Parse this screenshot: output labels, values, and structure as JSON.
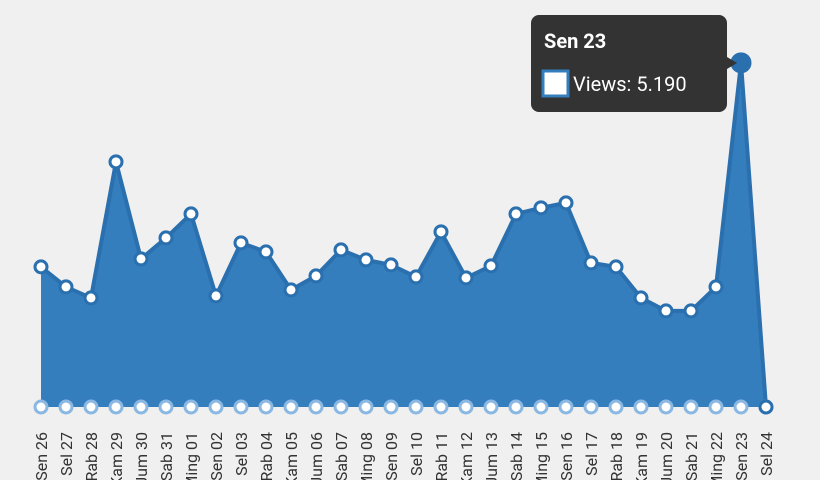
{
  "chart_data": {
    "type": "area",
    "categories": [
      "Sen 26",
      "Sel 27",
      "Rab 28",
      "Kam 29",
      "Jum 30",
      "Sab 31",
      "Ming 01",
      "Sen 02",
      "Sel 03",
      "Rab 04",
      "Kam 05",
      "Jum 06",
      "Sab 07",
      "Ming 08",
      "Sen 09",
      "Sel 10",
      "Rab 11",
      "Kam 12",
      "Jum 13",
      "Sab 14",
      "Ming 15",
      "Sen 16",
      "Sel 17",
      "Rab 18",
      "Kam 19",
      "Jum 20",
      "Sab 21",
      "Ming 22",
      "Sen 23",
      "Sel 24"
    ],
    "series": [
      {
        "name": "Views",
        "color": "#357ebd",
        "values": [
          2113,
          1811,
          1645,
          3697,
          2233,
          2550,
          2912,
          1675,
          2475,
          2339,
          1766,
          1977,
          2369,
          2218,
          2143,
          1962,
          2641,
          1947,
          2128,
          2912,
          3003,
          3078,
          2173,
          2113,
          1645,
          1449,
          1449,
          1811,
          5190,
          0
        ]
      }
    ],
    "ylim": [
      0,
      5700
    ],
    "tooltip": {
      "title": "Sen 23",
      "text": "Views: 5.190"
    }
  }
}
